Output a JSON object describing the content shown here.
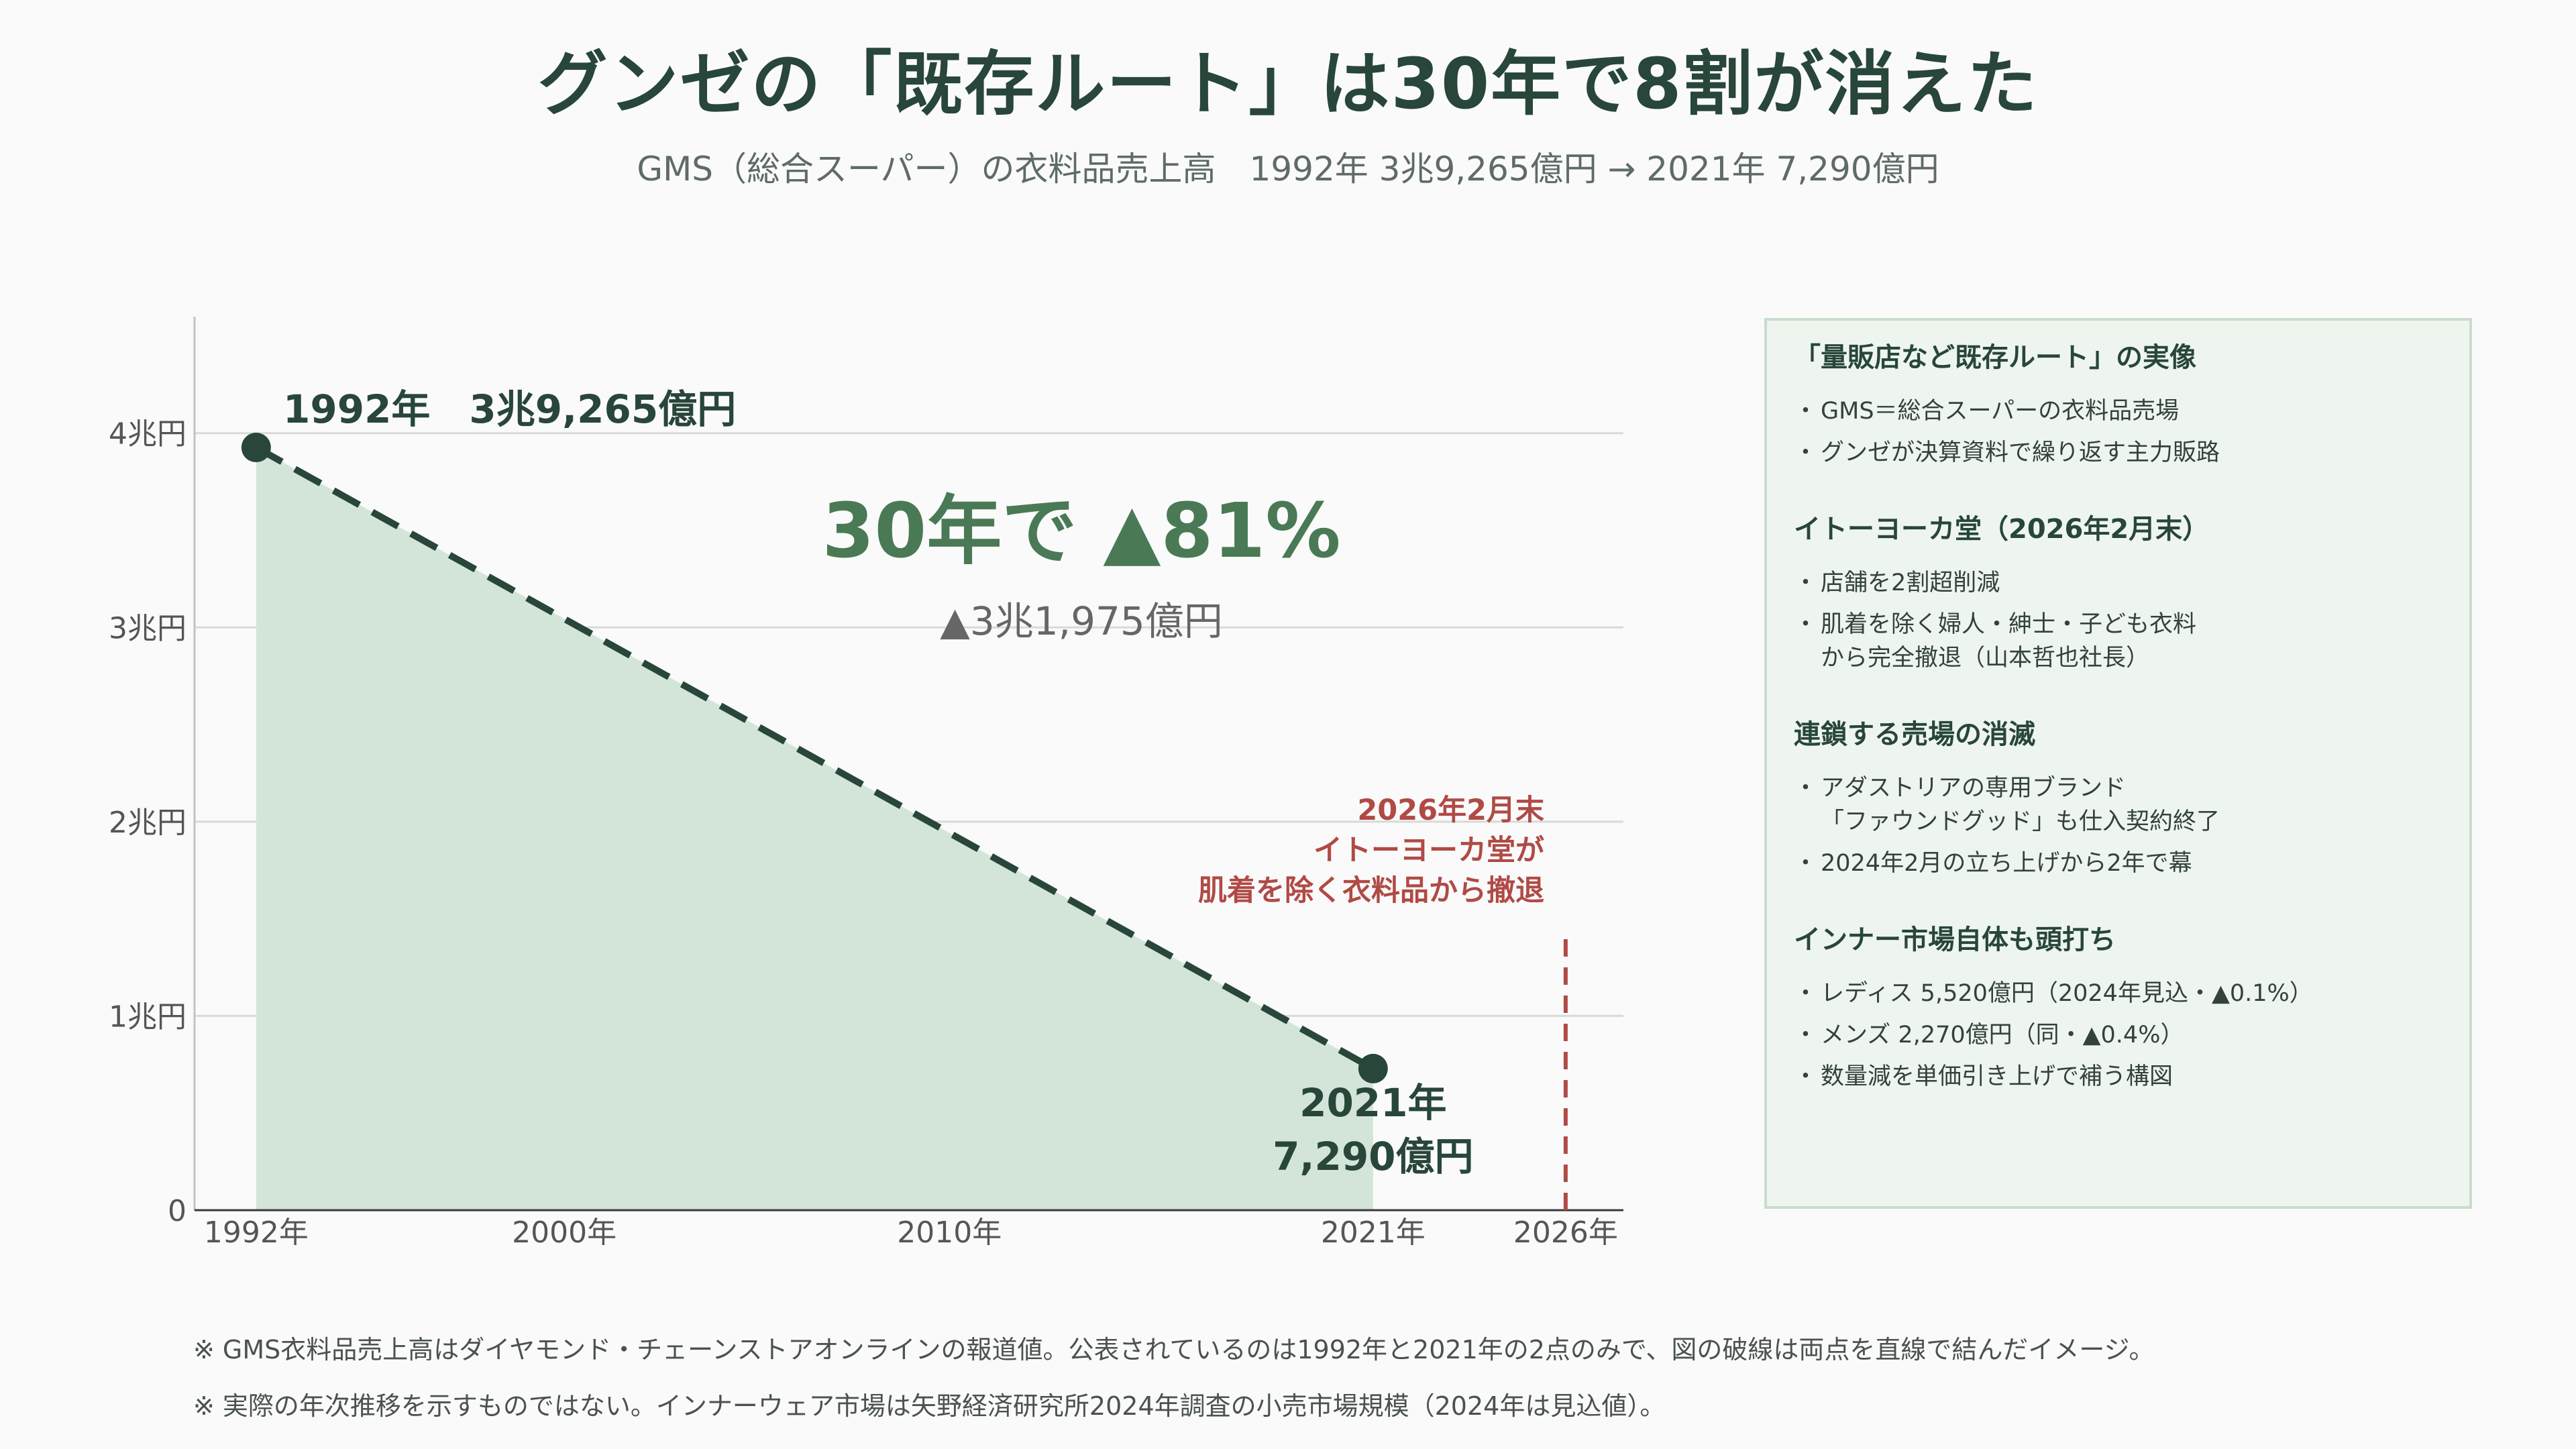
{
  "title": "グンゼの「既存ルート」は30年で8割が消えた",
  "subtitle": "GMS（総合スーパー）の衣料品売上高　1992年 3兆9,265億円 → 2021年 7,290億円",
  "chart_data": {
    "type": "area",
    "title": "",
    "xlabel": "",
    "ylabel": "",
    "x_ticks": [
      {
        "value": 1992,
        "label": "1992年"
      },
      {
        "value": 2000,
        "label": "2000年"
      },
      {
        "value": 2010,
        "label": "2010年"
      },
      {
        "value": 2021,
        "label": "2021年"
      },
      {
        "value": 2026,
        "label": "2026年"
      }
    ],
    "y_ticks": [
      {
        "value": 0,
        "label": "0"
      },
      {
        "value": 10000,
        "label": "1兆円"
      },
      {
        "value": 20000,
        "label": "2兆円"
      },
      {
        "value": 30000,
        "label": "3兆円"
      },
      {
        "value": 40000,
        "label": "4兆円"
      }
    ],
    "xlim": [
      1990.4,
      2027.5
    ],
    "ylim": [
      0,
      46000
    ],
    "grid": true,
    "series": [
      {
        "points": [
          {
            "x": 1992,
            "y": 39265
          },
          {
            "x": 2021,
            "y": 7290
          }
        ],
        "color": "#28463a",
        "fill": "#d3e4d8"
      }
    ],
    "point_labels": [
      {
        "line1": "1992年　3兆9,265億円",
        "line2": ""
      },
      {
        "line1": "2021年",
        "line2": "7,290億円"
      }
    ],
    "center_annotation": {
      "main": "30年で ▲81%",
      "sub": "▲3兆1,975億円",
      "color": "#4a7a55"
    },
    "event": {
      "x": 2026,
      "lines": [
        "2026年2月末",
        "イトーヨーカ堂が",
        "肌着を除く衣料品から撤退"
      ],
      "color": "#b04a45"
    }
  },
  "sidebar": [
    {
      "title": "「量販店など既存ルート」の実像",
      "items": [
        "GMS＝総合スーパーの衣料品売場",
        "グンゼが決算資料で繰り返す主力販路"
      ]
    },
    {
      "title": "イトーヨーカ堂（2026年2月末）",
      "items": [
        "店舗を2割超削減",
        "肌着を除く婦人・紳士・子ども衣料\nから完全撤退（山本哲也社長）"
      ]
    },
    {
      "title": "連鎖する売場の消滅",
      "items": [
        "アダストリアの専用ブランド\n「ファウンドグッド」も仕入契約終了",
        "2024年2月の立ち上げから2年で幕"
      ]
    },
    {
      "title": "インナー市場自体も頭打ち",
      "items": [
        "レディス 5,520億円（2024年見込・▲0.1%）",
        "メンズ 2,270億円（同・▲0.4%）",
        "数量減を単価引き上げで補う構図"
      ]
    }
  ],
  "notes": [
    "※ GMS衣料品売上高はダイヤモンド・チェーンストアオンラインの報道値。公表されているのは1992年と2021年の2点のみで、図の破線は両点を直線で結んだイメージ。",
    "※ 実際の年次推移を示すものではない。インナーウェア市場は矢野経済研究所2024年調査の小売市場規模（2024年は見込値）。"
  ]
}
